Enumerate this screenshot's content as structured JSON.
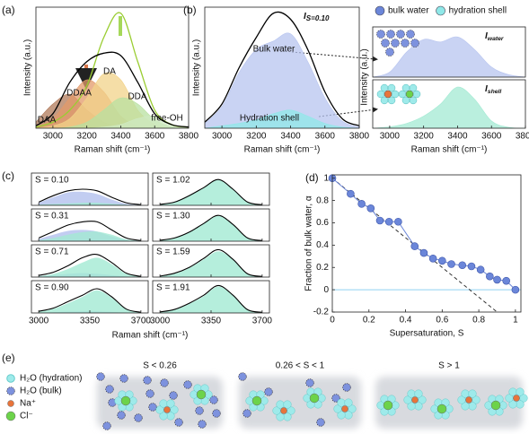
{
  "chart_data": [
    {
      "type": "line",
      "label": "(a)",
      "xlabel": "Raman shift (cm⁻¹)",
      "ylabel": "Intensity (a.u.)",
      "x": [
        2900,
        3000,
        3100,
        3200,
        3300,
        3400,
        3500,
        3600,
        3700,
        3800
      ],
      "xlim": [
        2900,
        3800
      ],
      "xticks": [
        3000,
        3200,
        3400,
        3600,
        3800
      ],
      "ylim": [
        0,
        1
      ],
      "series": [
        {
          "color": "#b07a5a",
          "fill": true,
          "name": "DAA",
          "values": [
            0.05,
            0.2,
            0.28,
            0.15,
            0.05,
            0.01,
            0,
            0,
            0,
            0
          ]
        },
        {
          "color": "#e39a6a",
          "fill": true,
          "name": "DDAA",
          "values": [
            0.01,
            0.08,
            0.25,
            0.4,
            0.3,
            0.1,
            0.02,
            0,
            0,
            0
          ]
        },
        {
          "color": "#f2d38a",
          "fill": true,
          "name": "DA",
          "values": [
            0,
            0.02,
            0.08,
            0.25,
            0.45,
            0.4,
            0.15,
            0.03,
            0,
            0
          ]
        },
        {
          "color": "#b8e0a0",
          "fill": true,
          "name": "DDA",
          "values": [
            0,
            0,
            0.01,
            0.05,
            0.15,
            0.25,
            0.2,
            0.07,
            0.01,
            0
          ]
        },
        {
          "color": "#cfe9c2",
          "fill": true,
          "name": "free-OH",
          "values": [
            0,
            0,
            0,
            0,
            0.01,
            0.03,
            0.08,
            0.1,
            0.03,
            0
          ]
        },
        {
          "color": "#9acd32",
          "values": [
            0.01,
            0.05,
            0.15,
            0.35,
            0.75,
            0.95,
            0.55,
            0.15,
            0.03,
            0.01
          ]
        },
        {
          "color": "#000000",
          "values": [
            0.02,
            0.12,
            0.38,
            0.55,
            0.62,
            0.6,
            0.38,
            0.12,
            0.03,
            0.01
          ]
        }
      ]
    },
    {
      "type": "line",
      "label": "(b)",
      "title": "I",
      "title_sub": "S=0.10",
      "xlabel": "Raman shift (cm⁻¹)",
      "ylabel": "Intensity (a.u.)",
      "annotations": [
        "Bulk water",
        "Hydration shell"
      ],
      "x": [
        2900,
        3000,
        3100,
        3200,
        3300,
        3400,
        3500,
        3600,
        3700,
        3800
      ],
      "xlim": [
        2900,
        3800
      ],
      "xticks": [
        3000,
        3200,
        3400,
        3600,
        3800
      ],
      "ylim": [
        0,
        1
      ],
      "legend": "top-right",
      "series": [
        {
          "name": "bulk water",
          "color": "#b7c4ef",
          "marker_color": "#6b86d9",
          "fill": true,
          "values": [
            0.04,
            0.18,
            0.46,
            0.65,
            0.72,
            0.78,
            0.55,
            0.25,
            0.06,
            0.01
          ]
        },
        {
          "name": "hydration shell",
          "color": "#8fe8e8",
          "marker_color": "#8fe8e8",
          "fill": true,
          "values": [
            0,
            0.02,
            0.04,
            0.07,
            0.12,
            0.15,
            0.1,
            0.04,
            0.01,
            0
          ]
        },
        {
          "color": "#000000",
          "values": [
            0.05,
            0.2,
            0.5,
            0.75,
            0.95,
            0.9,
            0.65,
            0.3,
            0.08,
            0.02
          ]
        }
      ]
    },
    {
      "type": "line",
      "title": "I",
      "title_sub": "water",
      "ylabel": "Intensity (a.u.)",
      "x": [
        2900,
        3000,
        3100,
        3200,
        3300,
        3400,
        3500,
        3600,
        3700,
        3800
      ],
      "xlim": [
        2900,
        3800
      ],
      "ylim": [
        0,
        1
      ],
      "series": [
        {
          "color": "#b7c4ef",
          "fill": true,
          "values": [
            0,
            0.1,
            0.5,
            0.75,
            0.7,
            0.8,
            0.55,
            0.2,
            0.05,
            0
          ]
        }
      ]
    },
    {
      "type": "line",
      "title": "I",
      "title_sub": "shell",
      "xlabel": "Raman shift (cm⁻¹)",
      "x": [
        2900,
        3000,
        3100,
        3200,
        3300,
        3400,
        3500,
        3600,
        3700,
        3800
      ],
      "xlim": [
        2900,
        3800
      ],
      "xticks": [
        3000,
        3200,
        3400,
        3600,
        3800
      ],
      "ylim": [
        0,
        1
      ],
      "series": [
        {
          "color": "#a3ead3",
          "fill": true,
          "values": [
            0,
            0.03,
            0.1,
            0.25,
            0.5,
            0.85,
            0.6,
            0.15,
            0.02,
            0
          ]
        }
      ]
    },
    {
      "type": "line",
      "label": "(c)",
      "xlabel": "Raman shift (cm⁻¹)",
      "x": [
        3000,
        3100,
        3200,
        3300,
        3400,
        3500,
        3600,
        3700
      ],
      "xlim": [
        2950,
        3750
      ],
      "xticks": [
        3000,
        3350,
        3700
      ],
      "ylim": [
        0,
        1
      ],
      "colors": [
        "#b3c0ee",
        "#a3ead3",
        "#000000"
      ],
      "filled": [
        true,
        true,
        false
      ],
      "panels": [
        {
          "label": "S = 0.10",
          "series": [
            {
              "values": [
                0.08,
                0.25,
                0.4,
                0.42,
                0.35,
                0.18,
                0.05,
                0.01
              ]
            },
            {
              "values": [
                0.02,
                0.04,
                0.06,
                0.08,
                0.08,
                0.05,
                0.02,
                0
              ]
            },
            {
              "values": [
                0.1,
                0.3,
                0.45,
                0.5,
                0.45,
                0.25,
                0.08,
                0.02
              ]
            }
          ]
        },
        {
          "label": "S = 0.31",
          "series": [
            {
              "values": [
                0.07,
                0.2,
                0.32,
                0.35,
                0.3,
                0.15,
                0.04,
                0.01
              ]
            },
            {
              "values": [
                0.03,
                0.1,
                0.2,
                0.28,
                0.3,
                0.2,
                0.06,
                0.01
              ]
            },
            {
              "values": [
                0.1,
                0.3,
                0.5,
                0.6,
                0.6,
                0.35,
                0.1,
                0.02
              ]
            }
          ]
        },
        {
          "label": "S = 0.71",
          "series": [
            {
              "values": [
                0.03,
                0.06,
                0.1,
                0.12,
                0.1,
                0.06,
                0.02,
                0
              ]
            },
            {
              "values": [
                0.02,
                0.1,
                0.25,
                0.45,
                0.6,
                0.4,
                0.1,
                0.02
              ]
            },
            {
              "values": [
                0.05,
                0.15,
                0.35,
                0.6,
                0.7,
                0.45,
                0.12,
                0.02
              ]
            }
          ]
        },
        {
          "label": "S = 0.90",
          "series": [
            {
              "values": [
                0.01,
                0.02,
                0.04,
                0.05,
                0.05,
                0.03,
                0.01,
                0
              ]
            },
            {
              "values": [
                0.04,
                0.13,
                0.3,
                0.5,
                0.7,
                0.47,
                0.11,
                0.02
              ]
            },
            {
              "values": [
                0.05,
                0.15,
                0.35,
                0.55,
                0.75,
                0.5,
                0.12,
                0.02
              ]
            }
          ]
        },
        {
          "label": "S = 1.02",
          "series": [
            {
              "values": [
                0,
                0,
                0.01,
                0.01,
                0.01,
                0.01,
                0,
                0
              ]
            },
            {
              "values": [
                0.03,
                0.1,
                0.3,
                0.55,
                0.8,
                0.5,
                0.1,
                0.02
              ]
            },
            {
              "values": [
                0.03,
                0.1,
                0.3,
                0.55,
                0.8,
                0.5,
                0.1,
                0.02
              ]
            }
          ]
        },
        {
          "label": "S = 1.30",
          "series": [
            {
              "values": [
                0,
                0,
                0.01,
                0.01,
                0.01,
                0.01,
                0,
                0
              ]
            },
            {
              "values": [
                0.03,
                0.1,
                0.28,
                0.55,
                0.78,
                0.52,
                0.1,
                0.02
              ]
            },
            {
              "values": [
                0.03,
                0.1,
                0.28,
                0.55,
                0.8,
                0.52,
                0.1,
                0.02
              ]
            }
          ]
        },
        {
          "label": "S = 1.59",
          "series": [
            {
              "values": [
                0,
                0,
                0.01,
                0.01,
                0.01,
                0.01,
                0,
                0
              ]
            },
            {
              "values": [
                0.03,
                0.1,
                0.28,
                0.55,
                0.8,
                0.55,
                0.1,
                0.02
              ]
            },
            {
              "values": [
                0.03,
                0.12,
                0.3,
                0.58,
                0.85,
                0.55,
                0.1,
                0.02
              ]
            }
          ]
        },
        {
          "label": "S = 1.91",
          "series": [
            {
              "values": [
                0,
                0,
                0.01,
                0.01,
                0.01,
                0.01,
                0,
                0
              ]
            },
            {
              "values": [
                0.03,
                0.1,
                0.28,
                0.52,
                0.82,
                0.55,
                0.1,
                0.02
              ]
            },
            {
              "values": [
                0.03,
                0.11,
                0.3,
                0.55,
                0.85,
                0.55,
                0.1,
                0.02
              ]
            }
          ]
        }
      ]
    },
    {
      "type": "scatter",
      "label": "(d)",
      "xlabel": "Supersaturation, S",
      "ylabel": "Fraction of bulk water, α",
      "x": [
        0,
        0.1,
        0.16,
        0.21,
        0.26,
        0.31,
        0.36,
        0.45,
        0.5,
        0.55,
        0.6,
        0.65,
        0.71,
        0.76,
        0.81,
        0.86,
        0.9,
        0.95,
        1.0
      ],
      "values": [
        1.0,
        0.86,
        0.77,
        0.73,
        0.62,
        0.61,
        0.61,
        0.39,
        0.33,
        0.28,
        0.26,
        0.23,
        0.22,
        0.21,
        0.18,
        0.12,
        0.09,
        0.08,
        0.0
      ],
      "color": "#6b86d9",
      "xlim": [
        0,
        1.03
      ],
      "ylim": [
        -0.2,
        1.03
      ],
      "xticks": [
        0,
        0.2,
        0.4,
        0.6,
        0.8,
        1
      ],
      "yticks": [
        -0.2,
        0,
        0.2,
        0.4,
        0.6,
        0.8,
        1
      ],
      "trend_line": {
        "x": [
          0,
          0.9
        ],
        "values": [
          1,
          -0.2
        ],
        "color": "#333333"
      },
      "reference_line": 0
    }
  ],
  "scheme": {
    "label": "(e)",
    "legend": [
      "H₂O (hydration)",
      "H₂O (bulk)",
      "Na⁺",
      "Cl⁻"
    ],
    "states": [
      "S < 0.26",
      "0.26 < S < 1",
      "S > 1"
    ]
  }
}
